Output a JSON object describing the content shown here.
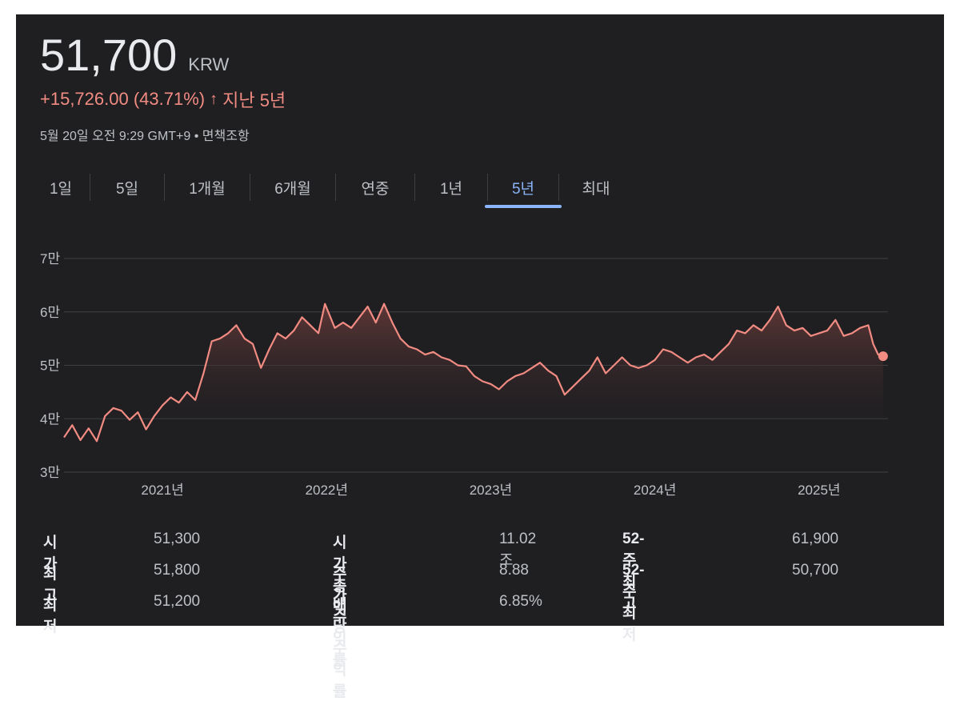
{
  "header": {
    "price": "51,700",
    "currency": "KRW",
    "change": "+15,726.00 (43.71%)",
    "change_arrow": "↑",
    "period_label": "지난 5년",
    "timestamp": "5월 20일 오전 9:29 GMT+9 • 면책조항"
  },
  "tabs": [
    {
      "label": "1일",
      "active": false
    },
    {
      "label": "5일",
      "active": false
    },
    {
      "label": "1개월",
      "active": false
    },
    {
      "label": "6개월",
      "active": false
    },
    {
      "label": "연중",
      "active": false
    },
    {
      "label": "1년",
      "active": false
    },
    {
      "label": "5년",
      "active": true
    },
    {
      "label": "최대",
      "active": false
    }
  ],
  "colors": {
    "line": "#f28b82",
    "fill_top": "#6b3b3a",
    "grid": "#3c4043",
    "axis_text": "#bdc1c6"
  },
  "chart_data": {
    "type": "area",
    "title": "",
    "xlabel": "",
    "ylabel": "",
    "ylim": [
      30000,
      70000
    ],
    "xlim": [
      2020.4,
      2025.42
    ],
    "y_ticks": [
      {
        "value": 70000,
        "label": "7만"
      },
      {
        "value": 60000,
        "label": "6만"
      },
      {
        "value": 50000,
        "label": "5만"
      },
      {
        "value": 40000,
        "label": "4만"
      },
      {
        "value": 30000,
        "label": "3만"
      }
    ],
    "x_ticks": [
      {
        "value": 2021.0,
        "label": "2021년"
      },
      {
        "value": 2022.0,
        "label": "2022년"
      },
      {
        "value": 2023.0,
        "label": "2023년"
      },
      {
        "value": 2024.0,
        "label": "2024년"
      },
      {
        "value": 2025.0,
        "label": "2025년"
      }
    ],
    "series": [
      {
        "name": "Price (KRW)",
        "x": [
          2020.4,
          2020.45,
          2020.5,
          2020.55,
          2020.6,
          2020.65,
          2020.7,
          2020.75,
          2020.8,
          2020.85,
          2020.9,
          2020.95,
          2021.0,
          2021.05,
          2021.1,
          2021.15,
          2021.2,
          2021.25,
          2021.3,
          2021.35,
          2021.4,
          2021.45,
          2021.5,
          2021.55,
          2021.6,
          2021.65,
          2021.7,
          2021.75,
          2021.8,
          2021.85,
          2021.9,
          2021.95,
          2021.99,
          2022.05,
          2022.1,
          2022.15,
          2022.2,
          2022.25,
          2022.3,
          2022.35,
          2022.4,
          2022.45,
          2022.5,
          2022.55,
          2022.6,
          2022.65,
          2022.7,
          2022.75,
          2022.8,
          2022.85,
          2022.9,
          2022.95,
          2023.0,
          2023.05,
          2023.1,
          2023.15,
          2023.2,
          2023.25,
          2023.3,
          2023.35,
          2023.4,
          2023.45,
          2023.5,
          2023.55,
          2023.6,
          2023.65,
          2023.7,
          2023.75,
          2023.8,
          2023.85,
          2023.9,
          2023.95,
          2024.0,
          2024.05,
          2024.1,
          2024.15,
          2024.2,
          2024.25,
          2024.3,
          2024.35,
          2024.4,
          2024.45,
          2024.5,
          2024.55,
          2024.6,
          2024.65,
          2024.7,
          2024.75,
          2024.8,
          2024.85,
          2024.9,
          2024.95,
          2025.0,
          2025.05,
          2025.1,
          2025.15,
          2025.2,
          2025.25,
          2025.3,
          2025.33,
          2025.36,
          2025.39
        ],
        "values": [
          36500,
          38800,
          36000,
          38200,
          35800,
          40500,
          42000,
          41500,
          39800,
          41200,
          38000,
          40500,
          42500,
          44000,
          43000,
          45000,
          43500,
          48500,
          54500,
          55000,
          56000,
          57500,
          55000,
          54000,
          49500,
          53000,
          56000,
          55000,
          56500,
          59000,
          57500,
          56000,
          61500,
          57000,
          58000,
          57000,
          59000,
          61000,
          58000,
          61500,
          58000,
          55000,
          53500,
          53000,
          52000,
          52500,
          51500,
          51000,
          50000,
          49800,
          48000,
          47000,
          46500,
          45500,
          47000,
          48000,
          48500,
          49500,
          50500,
          49000,
          48000,
          44500,
          46000,
          47500,
          49000,
          51500,
          48500,
          50000,
          51500,
          50000,
          49500,
          50000,
          51000,
          53000,
          52500,
          51500,
          50500,
          51500,
          52000,
          51000,
          52500,
          54000,
          56500,
          56000,
          57500,
          56500,
          58500,
          61000,
          57500,
          56500,
          57000,
          55500,
          56000,
          56500,
          58500,
          55500,
          56000,
          57000,
          57500,
          54000,
          52000,
          51700
        ]
      }
    ],
    "last_point": {
      "x": 2025.39,
      "value": 51700
    }
  },
  "stats": {
    "col1": [
      {
        "label": "시가",
        "value": "51,300"
      },
      {
        "label": "최고",
        "value": "51,800"
      },
      {
        "label": "최저",
        "value": "51,200"
      }
    ],
    "col2": [
      {
        "label": "시가총액",
        "value": "11.02조"
      },
      {
        "label": "주가수익률",
        "value": "8.88"
      },
      {
        "label": "배당수익률",
        "value": "6.85%"
      }
    ],
    "col3": [
      {
        "label": "52-주 최고",
        "value": "61,900"
      },
      {
        "label": "52-주 최저",
        "value": "50,700"
      }
    ]
  }
}
